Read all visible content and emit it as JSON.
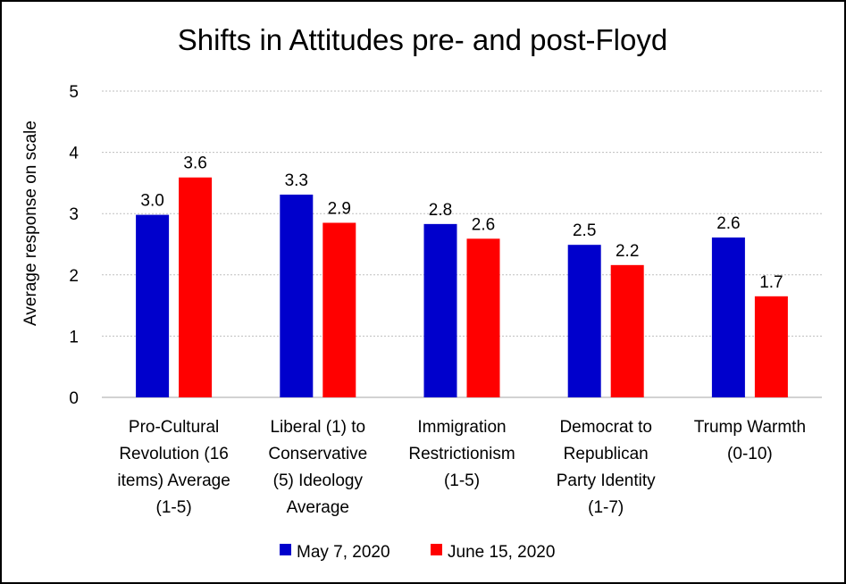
{
  "chart_data": {
    "type": "bar",
    "title": "Shifts in Attitudes pre- and post-Floyd",
    "ylabel": "Average response on scale",
    "xlabel": "",
    "ylim": [
      0,
      5
    ],
    "yticks": [
      0,
      1,
      2,
      3,
      4,
      5
    ],
    "grid": true,
    "legend_position": "bottom",
    "categories": [
      [
        "Pro-Cultural",
        "Revolution (16",
        "items) Average",
        "(1-5)"
      ],
      [
        "Liberal (1) to",
        "Conservative",
        "(5) Ideology",
        "Average"
      ],
      [
        "Immigration",
        "Restrictionism",
        "(1-5)"
      ],
      [
        "Democrat to",
        "Republican",
        "Party Identity",
        "(1-7)"
      ],
      [
        "Trump Warmth",
        "(0-10)"
      ]
    ],
    "series": [
      {
        "name": "May 7, 2020",
        "color": "#0000CC",
        "values": [
          2.98,
          3.31,
          2.83,
          2.49,
          2.61
        ],
        "labels": [
          "3.0",
          "3.3",
          "2.8",
          "2.5",
          "2.6"
        ]
      },
      {
        "name": "June 15, 2020",
        "color": "#FF0000",
        "values": [
          3.59,
          2.85,
          2.59,
          2.16,
          1.65
        ],
        "labels": [
          "3.6",
          "2.9",
          "2.6",
          "2.2",
          "1.7"
        ]
      }
    ]
  }
}
